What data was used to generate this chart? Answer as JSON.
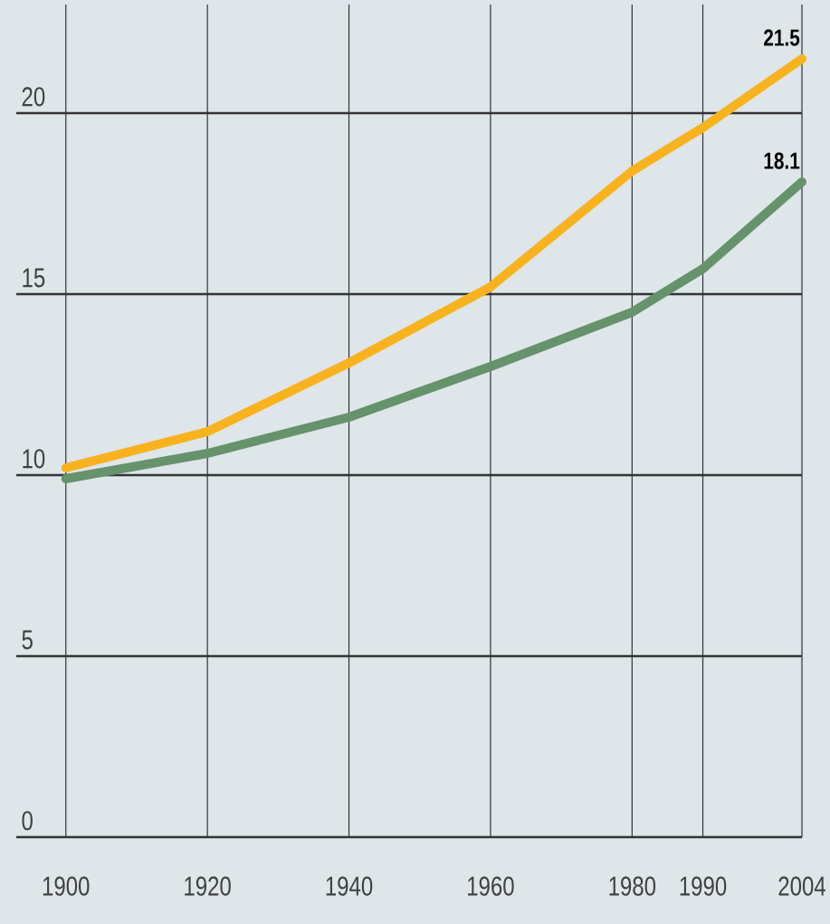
{
  "chart_data": {
    "type": "line",
    "x": [
      1900,
      1920,
      1940,
      1960,
      1980,
      1990,
      2004
    ],
    "series": [
      {
        "color": "#f7b21e",
        "values": [
          10.2,
          11.2,
          13.1,
          15.2,
          18.4,
          19.6,
          21.5
        ],
        "value_labels": [
          null,
          null,
          null,
          null,
          null,
          null,
          "21.5"
        ]
      },
      {
        "color": "#66926c",
        "values": [
          9.9,
          10.6,
          11.6,
          13.0,
          14.5,
          15.7,
          18.1
        ],
        "value_labels": [
          null,
          null,
          null,
          null,
          null,
          null,
          "18.1"
        ]
      }
    ],
    "xlim": [
      1893,
      2004
    ],
    "ylim": [
      0,
      23
    ],
    "xticks": [
      1900,
      1920,
      1940,
      1960,
      1980,
      1990,
      2004
    ],
    "yticks": [
      0,
      5,
      10,
      15,
      20
    ],
    "grid": true,
    "marker": "none",
    "line_style": "solid"
  }
}
